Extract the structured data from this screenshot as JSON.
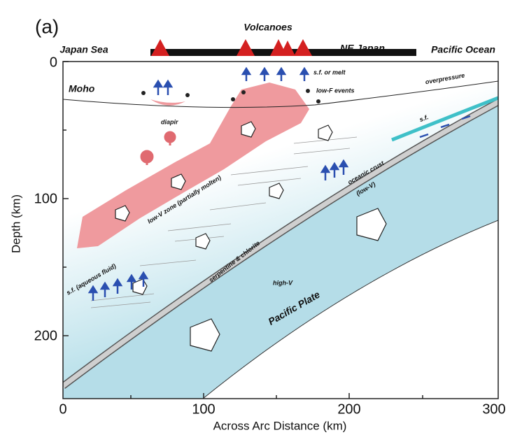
{
  "panel_label": "(a)",
  "top_labels": {
    "volcanoes": "Volcanoes",
    "japan_sea": "Japan Sea",
    "ne_japan": "NE Japan",
    "pacific_ocean": "Pacific Ocean"
  },
  "annotations": {
    "moho": "Moho",
    "sf_or_melt": "s.f. or melt",
    "low_f_events": "low-F events",
    "overpressure": "overpressure",
    "diapir": "diapir",
    "sf": "s.f.",
    "low_v_zone": "low-V zone (partially molten)",
    "oceanic_crust": "oceanic crust",
    "oceanic_crust_note": "(low-V)",
    "serpentine": "serpentine & chlorite",
    "sf_aqueous": "s.f. (aqueous fluid)",
    "high_v": "high-V",
    "pacific_plate": "Pacific Plate"
  },
  "axes": {
    "y_label": "Depth (km)",
    "x_label": "Across Arc Distance (km)",
    "y_ticks": [
      "0",
      "100",
      "200"
    ],
    "x_ticks": [
      "0",
      "100",
      "200",
      "300"
    ]
  }
}
